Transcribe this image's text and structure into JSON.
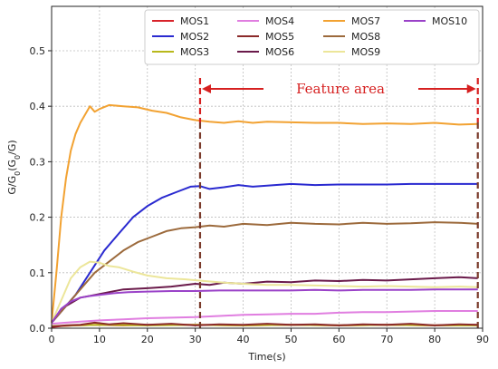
{
  "chart_data": {
    "type": "line",
    "xlabel": "Time(s)",
    "ylabel_parts": [
      "G/G",
      "0",
      "(G",
      "0",
      "/G)"
    ],
    "xlim": [
      0,
      90
    ],
    "ylim": [
      0,
      0.58
    ],
    "xticks": [
      0,
      10,
      20,
      30,
      40,
      50,
      60,
      70,
      80,
      90
    ],
    "yticks": [
      0.0,
      0.1,
      0.2,
      0.3,
      0.4,
      0.5
    ],
    "grid": true,
    "legend_position": "top-right",
    "series": [
      {
        "name": "MOS1",
        "color": "#d8232a",
        "x": [
          0,
          2,
          5,
          10,
          15,
          20,
          30,
          40,
          50,
          60,
          70,
          80,
          89
        ],
        "y": [
          0.002,
          0.004,
          0.005,
          0.006,
          0.005,
          0.006,
          0.006,
          0.005,
          0.006,
          0.005,
          0.006,
          0.005,
          0.006
        ]
      },
      {
        "name": "MOS2",
        "color": "#2a2ad0",
        "x": [
          0,
          2,
          5,
          8,
          11,
          14,
          17,
          20,
          23,
          26,
          29,
          31,
          33,
          36,
          39,
          42,
          45,
          50,
          55,
          60,
          65,
          70,
          75,
          80,
          85,
          89
        ],
        "y": [
          0.01,
          0.03,
          0.06,
          0.1,
          0.14,
          0.17,
          0.2,
          0.22,
          0.235,
          0.245,
          0.255,
          0.256,
          0.251,
          0.254,
          0.258,
          0.255,
          0.257,
          0.26,
          0.258,
          0.259,
          0.259,
          0.259,
          0.26,
          0.26,
          0.26,
          0.26
        ]
      },
      {
        "name": "MOS3",
        "color": "#b8b81c",
        "x": [
          0,
          5,
          10,
          20,
          30,
          40,
          50,
          60,
          70,
          80,
          89
        ],
        "y": [
          0.004,
          0.005,
          0.006,
          0.005,
          0.006,
          0.005,
          0.006,
          0.005,
          0.006,
          0.005,
          0.005
        ]
      },
      {
        "name": "MOS4",
        "color": "#e07ee0",
        "x": [
          0,
          3,
          6,
          10,
          15,
          20,
          25,
          30,
          35,
          40,
          45,
          50,
          55,
          60,
          65,
          70,
          75,
          80,
          85,
          89
        ],
        "y": [
          0.008,
          0.01,
          0.012,
          0.014,
          0.016,
          0.018,
          0.019,
          0.02,
          0.022,
          0.024,
          0.025,
          0.026,
          0.026,
          0.028,
          0.029,
          0.029,
          0.03,
          0.031,
          0.031,
          0.031
        ]
      },
      {
        "name": "MOS5",
        "color": "#8b2a2a",
        "x": [
          0,
          3,
          6,
          9,
          12,
          15,
          20,
          25,
          30,
          35,
          40,
          45,
          50,
          55,
          60,
          65,
          70,
          75,
          80,
          85,
          89
        ],
        "y": [
          0.003,
          0.005,
          0.006,
          0.01,
          0.007,
          0.009,
          0.006,
          0.008,
          0.005,
          0.007,
          0.006,
          0.008,
          0.006,
          0.007,
          0.005,
          0.007,
          0.006,
          0.008,
          0.005,
          0.007,
          0.006
        ]
      },
      {
        "name": "MOS6",
        "color": "#6a1a4a",
        "x": [
          0,
          3,
          6,
          9,
          12,
          15,
          20,
          25,
          30,
          33,
          36,
          40,
          45,
          50,
          55,
          60,
          65,
          70,
          75,
          80,
          85,
          89
        ],
        "y": [
          0.01,
          0.04,
          0.055,
          0.06,
          0.065,
          0.07,
          0.072,
          0.075,
          0.08,
          0.078,
          0.082,
          0.08,
          0.084,
          0.083,
          0.086,
          0.085,
          0.087,
          0.086,
          0.088,
          0.09,
          0.092,
          0.09
        ]
      },
      {
        "name": "MOS7",
        "color": "#f2a232",
        "x": [
          0,
          1,
          2,
          3,
          4,
          5,
          6,
          7,
          8,
          9,
          10,
          12,
          15,
          18,
          21,
          24,
          27,
          30,
          33,
          36,
          39,
          42,
          45,
          50,
          55,
          60,
          65,
          70,
          75,
          80,
          85,
          89
        ],
        "y": [
          0.01,
          0.1,
          0.2,
          0.27,
          0.32,
          0.35,
          0.37,
          0.385,
          0.4,
          0.39,
          0.395,
          0.402,
          0.4,
          0.398,
          0.392,
          0.388,
          0.38,
          0.375,
          0.372,
          0.37,
          0.373,
          0.37,
          0.372,
          0.371,
          0.37,
          0.37,
          0.368,
          0.369,
          0.368,
          0.37,
          0.367,
          0.368
        ]
      },
      {
        "name": "MOS8",
        "color": "#9c6a3c",
        "x": [
          0,
          3,
          6,
          9,
          12,
          15,
          18,
          21,
          24,
          27,
          30,
          33,
          36,
          40,
          45,
          50,
          55,
          60,
          65,
          70,
          75,
          80,
          85,
          89
        ],
        "y": [
          0.01,
          0.04,
          0.07,
          0.1,
          0.12,
          0.14,
          0.155,
          0.165,
          0.175,
          0.18,
          0.182,
          0.185,
          0.183,
          0.188,
          0.186,
          0.19,
          0.188,
          0.187,
          0.19,
          0.188,
          0.189,
          0.191,
          0.19,
          0.188
        ]
      },
      {
        "name": "MOS9",
        "color": "#ece69a",
        "x": [
          0,
          2,
          4,
          6,
          8,
          10,
          12,
          14,
          17,
          20,
          24,
          28,
          32,
          36,
          40,
          45,
          50,
          55,
          60,
          65,
          70,
          75,
          80,
          85,
          89
        ],
        "y": [
          0.01,
          0.05,
          0.09,
          0.11,
          0.12,
          0.118,
          0.112,
          0.11,
          0.102,
          0.095,
          0.09,
          0.088,
          0.085,
          0.082,
          0.08,
          0.078,
          0.078,
          0.077,
          0.076,
          0.075,
          0.076,
          0.075,
          0.074,
          0.075,
          0.074
        ]
      },
      {
        "name": "MOS10",
        "color": "#9a42c8",
        "x": [
          0,
          2,
          4,
          6,
          8,
          10,
          13,
          16,
          20,
          25,
          30,
          35,
          40,
          45,
          50,
          55,
          60,
          65,
          70,
          75,
          80,
          85,
          89
        ],
        "y": [
          0.01,
          0.035,
          0.048,
          0.055,
          0.058,
          0.06,
          0.063,
          0.065,
          0.066,
          0.067,
          0.067,
          0.068,
          0.068,
          0.068,
          0.068,
          0.069,
          0.068,
          0.069,
          0.069,
          0.069,
          0.07,
          0.07,
          0.07
        ]
      }
    ],
    "annotations": {
      "feature_label": "Feature area",
      "feature_start_x": 31,
      "feature_end_x": 89,
      "color": "#d62020"
    }
  }
}
